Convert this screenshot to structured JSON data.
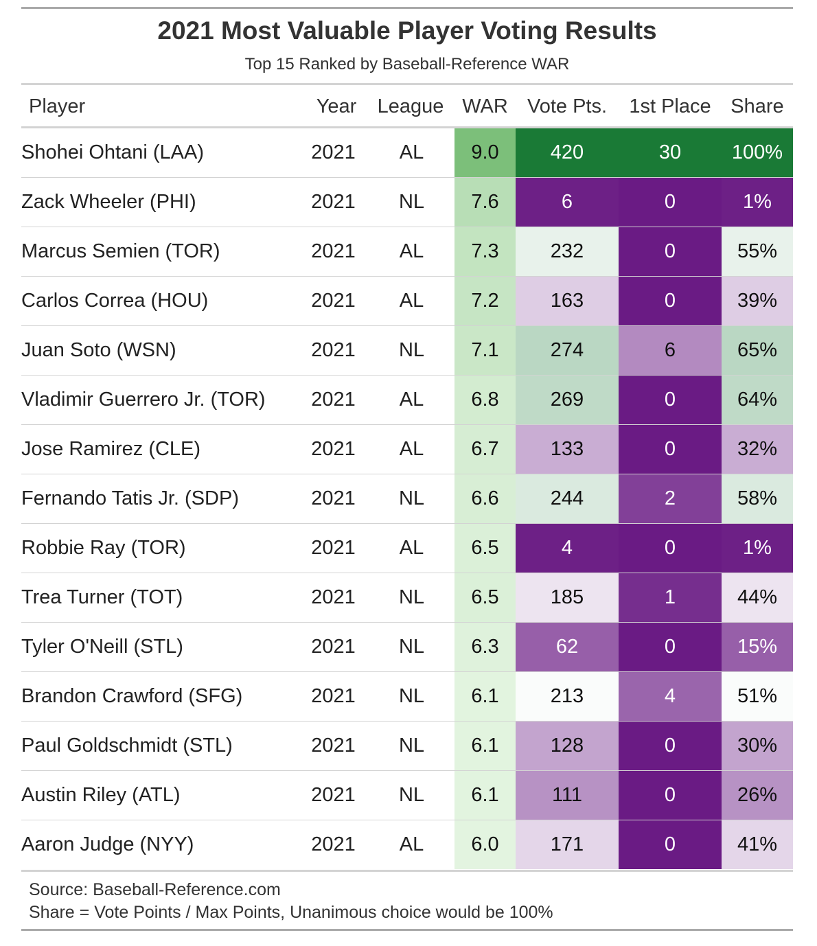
{
  "chart_data": {
    "type": "table",
    "title": "2021 Most Valuable Player Voting Results",
    "subtitle": "Top 15 Ranked by Baseball-Reference WAR",
    "columns": [
      "Player",
      "Year",
      "League",
      "WAR",
      "Vote Pts.",
      "1st Place",
      "Share"
    ],
    "rows": [
      {
        "player": "Shohei Ohtani (LAA)",
        "year": "2021",
        "league": "AL",
        "war": "9.0",
        "vote_pts": "420",
        "first_place": "30",
        "share": "100%"
      },
      {
        "player": "Zack Wheeler (PHI)",
        "year": "2021",
        "league": "NL",
        "war": "7.6",
        "vote_pts": "6",
        "first_place": "0",
        "share": "1%"
      },
      {
        "player": "Marcus Semien (TOR)",
        "year": "2021",
        "league": "AL",
        "war": "7.3",
        "vote_pts": "232",
        "first_place": "0",
        "share": "55%"
      },
      {
        "player": "Carlos Correa (HOU)",
        "year": "2021",
        "league": "AL",
        "war": "7.2",
        "vote_pts": "163",
        "first_place": "0",
        "share": "39%"
      },
      {
        "player": "Juan Soto (WSN)",
        "year": "2021",
        "league": "NL",
        "war": "7.1",
        "vote_pts": "274",
        "first_place": "6",
        "share": "65%"
      },
      {
        "player": "Vladimir Guerrero Jr. (TOR)",
        "year": "2021",
        "league": "AL",
        "war": "6.8",
        "vote_pts": "269",
        "first_place": "0",
        "share": "64%"
      },
      {
        "player": "Jose Ramirez (CLE)",
        "year": "2021",
        "league": "AL",
        "war": "6.7",
        "vote_pts": "133",
        "first_place": "0",
        "share": "32%"
      },
      {
        "player": "Fernando Tatis Jr. (SDP)",
        "year": "2021",
        "league": "NL",
        "war": "6.6",
        "vote_pts": "244",
        "first_place": "2",
        "share": "58%"
      },
      {
        "player": "Robbie Ray (TOR)",
        "year": "2021",
        "league": "AL",
        "war": "6.5",
        "vote_pts": "4",
        "first_place": "0",
        "share": "1%"
      },
      {
        "player": "Trea Turner (TOT)",
        "year": "2021",
        "league": "NL",
        "war": "6.5",
        "vote_pts": "185",
        "first_place": "1",
        "share": "44%"
      },
      {
        "player": "Tyler O'Neill (STL)",
        "year": "2021",
        "league": "NL",
        "war": "6.3",
        "vote_pts": "62",
        "first_place": "0",
        "share": "15%"
      },
      {
        "player": "Brandon Crawford (SFG)",
        "year": "2021",
        "league": "NL",
        "war": "6.1",
        "vote_pts": "213",
        "first_place": "4",
        "share": "51%"
      },
      {
        "player": "Paul Goldschmidt (STL)",
        "year": "2021",
        "league": "NL",
        "war": "6.1",
        "vote_pts": "128",
        "first_place": "0",
        "share": "30%"
      },
      {
        "player": "Austin Riley (ATL)",
        "year": "2021",
        "league": "NL",
        "war": "6.1",
        "vote_pts": "111",
        "first_place": "0",
        "share": "26%"
      },
      {
        "player": "Aaron Judge (NYY)",
        "year": "2021",
        "league": "AL",
        "war": "6.0",
        "vote_pts": "171",
        "first_place": "0",
        "share": "41%"
      }
    ],
    "source_note": "Source: Baseball-Reference.com",
    "share_note": "Share = Vote Points / Max Points, Unanimous choice would be 100%",
    "colors": {
      "war_scale": [
        "#e3f4e0",
        "#7cbf7a"
      ],
      "votes_scale": [
        "#ffffff",
        "#1a7a36"
      ],
      "votes_low_scale": [
        "#ffffff",
        "#6a1b84"
      ],
      "midpoint_share_pct": 50
    }
  }
}
